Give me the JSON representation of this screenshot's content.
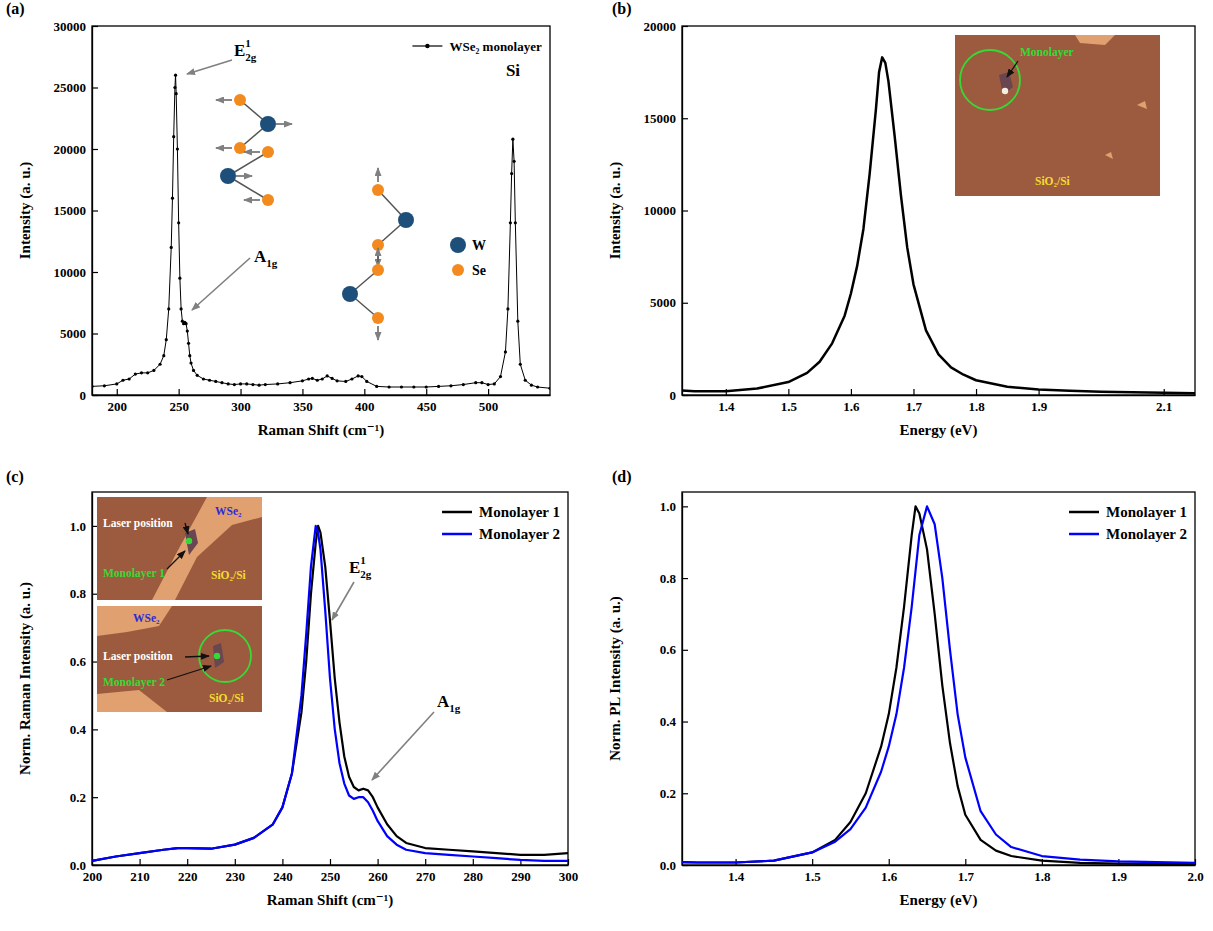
{
  "chart_data": [
    {
      "type": "line",
      "panel_label": "(a)",
      "x_label": "Raman Shift (cm⁻¹)",
      "y_label": "Intensity (a. u.)",
      "xlim": [
        180,
        550
      ],
      "xticks": [
        200,
        250,
        300,
        350,
        400,
        450,
        500
      ],
      "ylim": [
        0,
        30000
      ],
      "yticks": [
        0,
        5000,
        10000,
        15000,
        20000,
        25000,
        30000
      ],
      "legend": "upper right",
      "x": [
        180,
        190,
        200,
        205,
        210,
        215,
        220,
        225,
        230,
        235,
        238,
        240,
        242,
        244,
        245,
        246,
        247,
        247.5,
        248,
        249,
        250,
        251,
        252,
        253,
        254,
        255,
        256,
        257,
        258,
        259,
        260,
        262,
        265,
        270,
        275,
        280,
        285,
        290,
        295,
        300,
        305,
        310,
        315,
        320,
        330,
        340,
        350,
        355,
        358,
        362,
        366,
        370,
        374,
        378,
        385,
        390,
        395,
        398,
        402,
        410,
        420,
        430,
        440,
        450,
        460,
        470,
        480,
        490,
        495,
        500,
        505,
        510,
        514,
        516,
        518,
        519,
        520,
        521,
        522,
        524,
        526,
        530,
        535,
        540,
        550
      ],
      "series": [
        {
          "name": "WSe₂ monolayer",
          "color": "#000000",
          "marker": "circle",
          "values": [
            700,
            750,
            900,
            1200,
            1300,
            1700,
            1800,
            1800,
            2000,
            2500,
            3200,
            4500,
            7000,
            12000,
            16000,
            21000,
            25000,
            26000,
            24500,
            20000,
            14000,
            9500,
            7000,
            6000,
            5800,
            5900,
            5800,
            5200,
            4200,
            3200,
            2600,
            2000,
            1600,
            1300,
            1200,
            1100,
            1000,
            900,
            850,
            900,
            900,
            850,
            800,
            850,
            900,
            1000,
            1150,
            1300,
            1350,
            1200,
            1300,
            1550,
            1350,
            1150,
            1100,
            1300,
            1550,
            1500,
            1100,
            700,
            650,
            650,
            650,
            650,
            700,
            750,
            850,
            1000,
            1000,
            850,
            900,
            1500,
            3500,
            7000,
            14000,
            18000,
            20800,
            19000,
            14000,
            6000,
            2500,
            1200,
            800,
            650,
            550
          ]
        }
      ],
      "annotations": [
        {
          "text": "E",
          "sup": "1",
          "sub": "2g"
        },
        {
          "text": "A",
          "sub": "1g"
        },
        {
          "text": "Si"
        }
      ],
      "atoms": [
        {
          "name": "W",
          "color": "#1d4f7a"
        },
        {
          "name": "Se",
          "color": "#f28a1e"
        }
      ]
    },
    {
      "type": "line",
      "panel_label": "(b)",
      "x_label": "Energy (eV)",
      "y_label": "Intensity (a. u.)",
      "xlim": [
        1.33,
        2.15
      ],
      "xticks": [
        1.4,
        1.5,
        1.6,
        1.7,
        1.8,
        1.9,
        2.1
      ],
      "ylim": [
        0,
        20000
      ],
      "yticks": [
        0,
        5000,
        10000,
        15000,
        20000
      ],
      "x": [
        1.33,
        1.35,
        1.4,
        1.45,
        1.5,
        1.53,
        1.55,
        1.57,
        1.59,
        1.6,
        1.61,
        1.62,
        1.63,
        1.64,
        1.645,
        1.65,
        1.655,
        1.66,
        1.67,
        1.68,
        1.69,
        1.7,
        1.72,
        1.74,
        1.76,
        1.78,
        1.8,
        1.85,
        1.9,
        1.95,
        2,
        2.05,
        2.1,
        2.15
      ],
      "series": [
        {
          "color": "#000000",
          "values": [
            250,
            200,
            200,
            350,
            700,
            1200,
            1800,
            2800,
            4300,
            5500,
            7000,
            9000,
            12000,
            15500,
            17500,
            18300,
            18000,
            17000,
            14000,
            10800,
            8000,
            6000,
            3500,
            2200,
            1500,
            1100,
            800,
            450,
            300,
            230,
            180,
            150,
            120,
            100
          ]
        }
      ],
      "insets": [
        [
          {
            "text": "Monolayer",
            "color": "#36d936"
          },
          {
            "text": "SiO₂/Si",
            "color": "#f2dc2e"
          }
        ]
      ]
    },
    {
      "type": "line",
      "panel_label": "(c)",
      "x_label": "Raman Shift (cm⁻¹)",
      "y_label": "Norm. Raman Intensity (a. u.)",
      "xlim": [
        200,
        300
      ],
      "xticks": [
        200,
        210,
        220,
        230,
        240,
        250,
        260,
        270,
        280,
        290,
        300
      ],
      "ylim": [
        0,
        1.1
      ],
      "yticks": [
        {
          "value": 0,
          "label": "0.0"
        },
        0.2,
        0.4,
        0.6,
        0.8,
        {
          "value": 1,
          "label": "1.0"
        }
      ],
      "legend": "upper right",
      "x": [
        200,
        205,
        210,
        215,
        218,
        220,
        225,
        230,
        234,
        238,
        240,
        242,
        244,
        245,
        246,
        247,
        247.5,
        248,
        249,
        250,
        251,
        252,
        253,
        254,
        255,
        256,
        257,
        258,
        259,
        260,
        262,
        264,
        266,
        270,
        275,
        280,
        285,
        290,
        295,
        300
      ],
      "series": [
        {
          "name": "Monolayer 1",
          "color": "#000000",
          "values": [
            0.012,
            0.025,
            0.035,
            0.045,
            0.05,
            0.05,
            0.048,
            0.06,
            0.08,
            0.12,
            0.17,
            0.27,
            0.45,
            0.6,
            0.8,
            0.95,
            1.0,
            0.98,
            0.88,
            0.72,
            0.55,
            0.42,
            0.32,
            0.26,
            0.23,
            0.22,
            0.225,
            0.22,
            0.2,
            0.17,
            0.12,
            0.085,
            0.065,
            0.05,
            0.045,
            0.04,
            0.035,
            0.03,
            0.03,
            0.035
          ]
        },
        {
          "name": "Monolayer 2",
          "color": "#0000ff",
          "values": [
            0.012,
            0.025,
            0.035,
            0.045,
            0.05,
            0.05,
            0.048,
            0.06,
            0.08,
            0.12,
            0.17,
            0.27,
            0.5,
            0.68,
            0.88,
            1.0,
            0.98,
            0.93,
            0.75,
            0.55,
            0.4,
            0.3,
            0.24,
            0.205,
            0.195,
            0.2,
            0.2,
            0.185,
            0.16,
            0.13,
            0.085,
            0.06,
            0.045,
            0.035,
            0.03,
            0.025,
            0.02,
            0.015,
            0.012,
            0.012
          ]
        }
      ],
      "annotations": [
        {
          "text": "E",
          "sup": "1",
          "sub": "2g"
        },
        {
          "text": "A",
          "sub": "1g"
        }
      ],
      "insets": [
        [
          {
            "text": "WSe₂",
            "color": "#2a2ad8"
          },
          {
            "text": "Laser position",
            "color": "#ffffff"
          },
          {
            "text": "Monolayer 1",
            "color": "#36d936"
          },
          {
            "text": "SiO₂/Si",
            "color": "#f2dc2e"
          }
        ],
        [
          {
            "text": "WSe₂",
            "color": "#2a2ad8"
          },
          {
            "text": "Laser position",
            "color": "#ffffff"
          },
          {
            "text": "Monolayer 2",
            "color": "#36d936"
          },
          {
            "text": "SiO₂/Si",
            "color": "#f2dc2e"
          }
        ]
      ]
    },
    {
      "type": "line",
      "panel_label": "(d)",
      "x_label": "Energy (eV)",
      "y_label": "Norm. PL Intensity (a. u.)",
      "xlim": [
        1.33,
        2.0
      ],
      "xticks": [
        1.4,
        1.5,
        1.6,
        1.7,
        1.8,
        1.9,
        {
          "value": 2,
          "label": "2.0"
        }
      ],
      "ylim": [
        0,
        1.04
      ],
      "yticks": [
        {
          "value": 0,
          "label": "0.0"
        },
        0.2,
        0.4,
        0.6,
        0.8,
        {
          "value": 1,
          "label": "1.0"
        }
      ],
      "legend": "upper right",
      "x": [
        1.33,
        1.35,
        1.4,
        1.45,
        1.5,
        1.53,
        1.55,
        1.57,
        1.59,
        1.6,
        1.61,
        1.62,
        1.63,
        1.635,
        1.64,
        1.65,
        1.66,
        1.67,
        1.68,
        1.69,
        1.7,
        1.72,
        1.74,
        1.76,
        1.8,
        1.85,
        1.9,
        1.95,
        2
      ],
      "series": [
        {
          "name": "Monolayer 1",
          "color": "#000000",
          "values": [
            0.008,
            0.007,
            0.007,
            0.012,
            0.035,
            0.07,
            0.12,
            0.2,
            0.33,
            0.42,
            0.55,
            0.72,
            0.92,
            1.0,
            0.98,
            0.88,
            0.7,
            0.5,
            0.34,
            0.22,
            0.14,
            0.07,
            0.04,
            0.025,
            0.012,
            0.006,
            0.004,
            0.003,
            0.003
          ]
        },
        {
          "name": "Monolayer 2",
          "color": "#0000ff",
          "values": [
            0.008,
            0.007,
            0.007,
            0.012,
            0.035,
            0.065,
            0.1,
            0.16,
            0.26,
            0.33,
            0.42,
            0.55,
            0.72,
            0.82,
            0.92,
            1.0,
            0.95,
            0.8,
            0.6,
            0.42,
            0.3,
            0.15,
            0.085,
            0.05,
            0.025,
            0.015,
            0.01,
            0.008,
            0.006
          ]
        }
      ]
    }
  ]
}
